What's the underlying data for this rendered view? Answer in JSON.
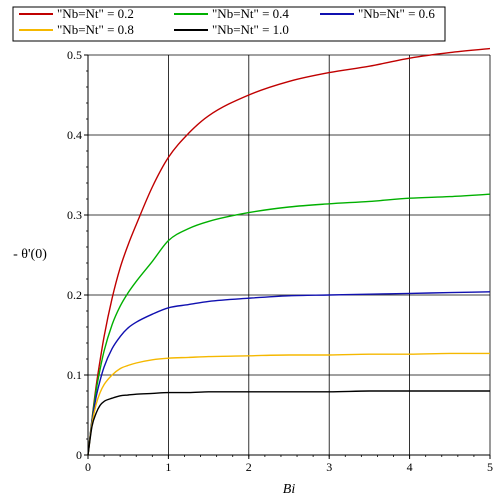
{
  "chart_data": {
    "type": "line",
    "xlabel": "Bi",
    "ylabel": "- θ'(0)",
    "xlim": [
      0,
      5
    ],
    "ylim": [
      0,
      0.5
    ],
    "x_ticks": [
      "0",
      "1",
      "2",
      "3",
      "4",
      "5"
    ],
    "y_ticks": [
      "0",
      "0.1",
      "0.2",
      "0.3",
      "0.4",
      "0.5"
    ],
    "grid": true,
    "legend_position": "top",
    "x": [
      0,
      0.05,
      0.1,
      0.15,
      0.2,
      0.3,
      0.4,
      0.5,
      0.6,
      0.8,
      1.0,
      1.25,
      1.5,
      2.0,
      2.5,
      3.0,
      3.5,
      4.0,
      4.5,
      5.0
    ],
    "series": [
      {
        "name": "\"Nb=Nt\" = 0.2",
        "color": "#c00000",
        "values": [
          0,
          0.045,
          0.085,
          0.118,
          0.148,
          0.196,
          0.234,
          0.263,
          0.288,
          0.335,
          0.372,
          0.402,
          0.424,
          0.45,
          0.467,
          0.478,
          0.486,
          0.496,
          0.503,
          0.508
        ]
      },
      {
        "name": "\"Nb=Nt\" = 0.4",
        "color": "#00b000",
        "values": [
          0,
          0.044,
          0.08,
          0.107,
          0.13,
          0.163,
          0.186,
          0.203,
          0.217,
          0.242,
          0.268,
          0.283,
          0.292,
          0.303,
          0.31,
          0.314,
          0.317,
          0.321,
          0.323,
          0.326
        ]
      },
      {
        "name": "\"Nb=Nt\" = 0.6",
        "color": "#1010b0",
        "values": [
          0,
          0.042,
          0.072,
          0.093,
          0.11,
          0.133,
          0.148,
          0.159,
          0.166,
          0.176,
          0.184,
          0.188,
          0.192,
          0.196,
          0.199,
          0.2,
          0.201,
          0.202,
          0.203,
          0.204
        ]
      },
      {
        "name": "\"Nb=Nt\" = 0.8",
        "color": "#f5b800",
        "values": [
          0,
          0.039,
          0.063,
          0.078,
          0.088,
          0.1,
          0.108,
          0.112,
          0.115,
          0.119,
          0.121,
          0.122,
          0.123,
          0.124,
          0.125,
          0.125,
          0.126,
          0.126,
          0.127,
          0.127
        ]
      },
      {
        "name": "\"Nb=Nt\" = 1.0",
        "color": "#000000",
        "values": [
          0,
          0.036,
          0.052,
          0.062,
          0.067,
          0.071,
          0.074,
          0.075,
          0.076,
          0.077,
          0.078,
          0.078,
          0.079,
          0.079,
          0.079,
          0.079,
          0.08,
          0.08,
          0.08,
          0.08
        ]
      }
    ]
  }
}
